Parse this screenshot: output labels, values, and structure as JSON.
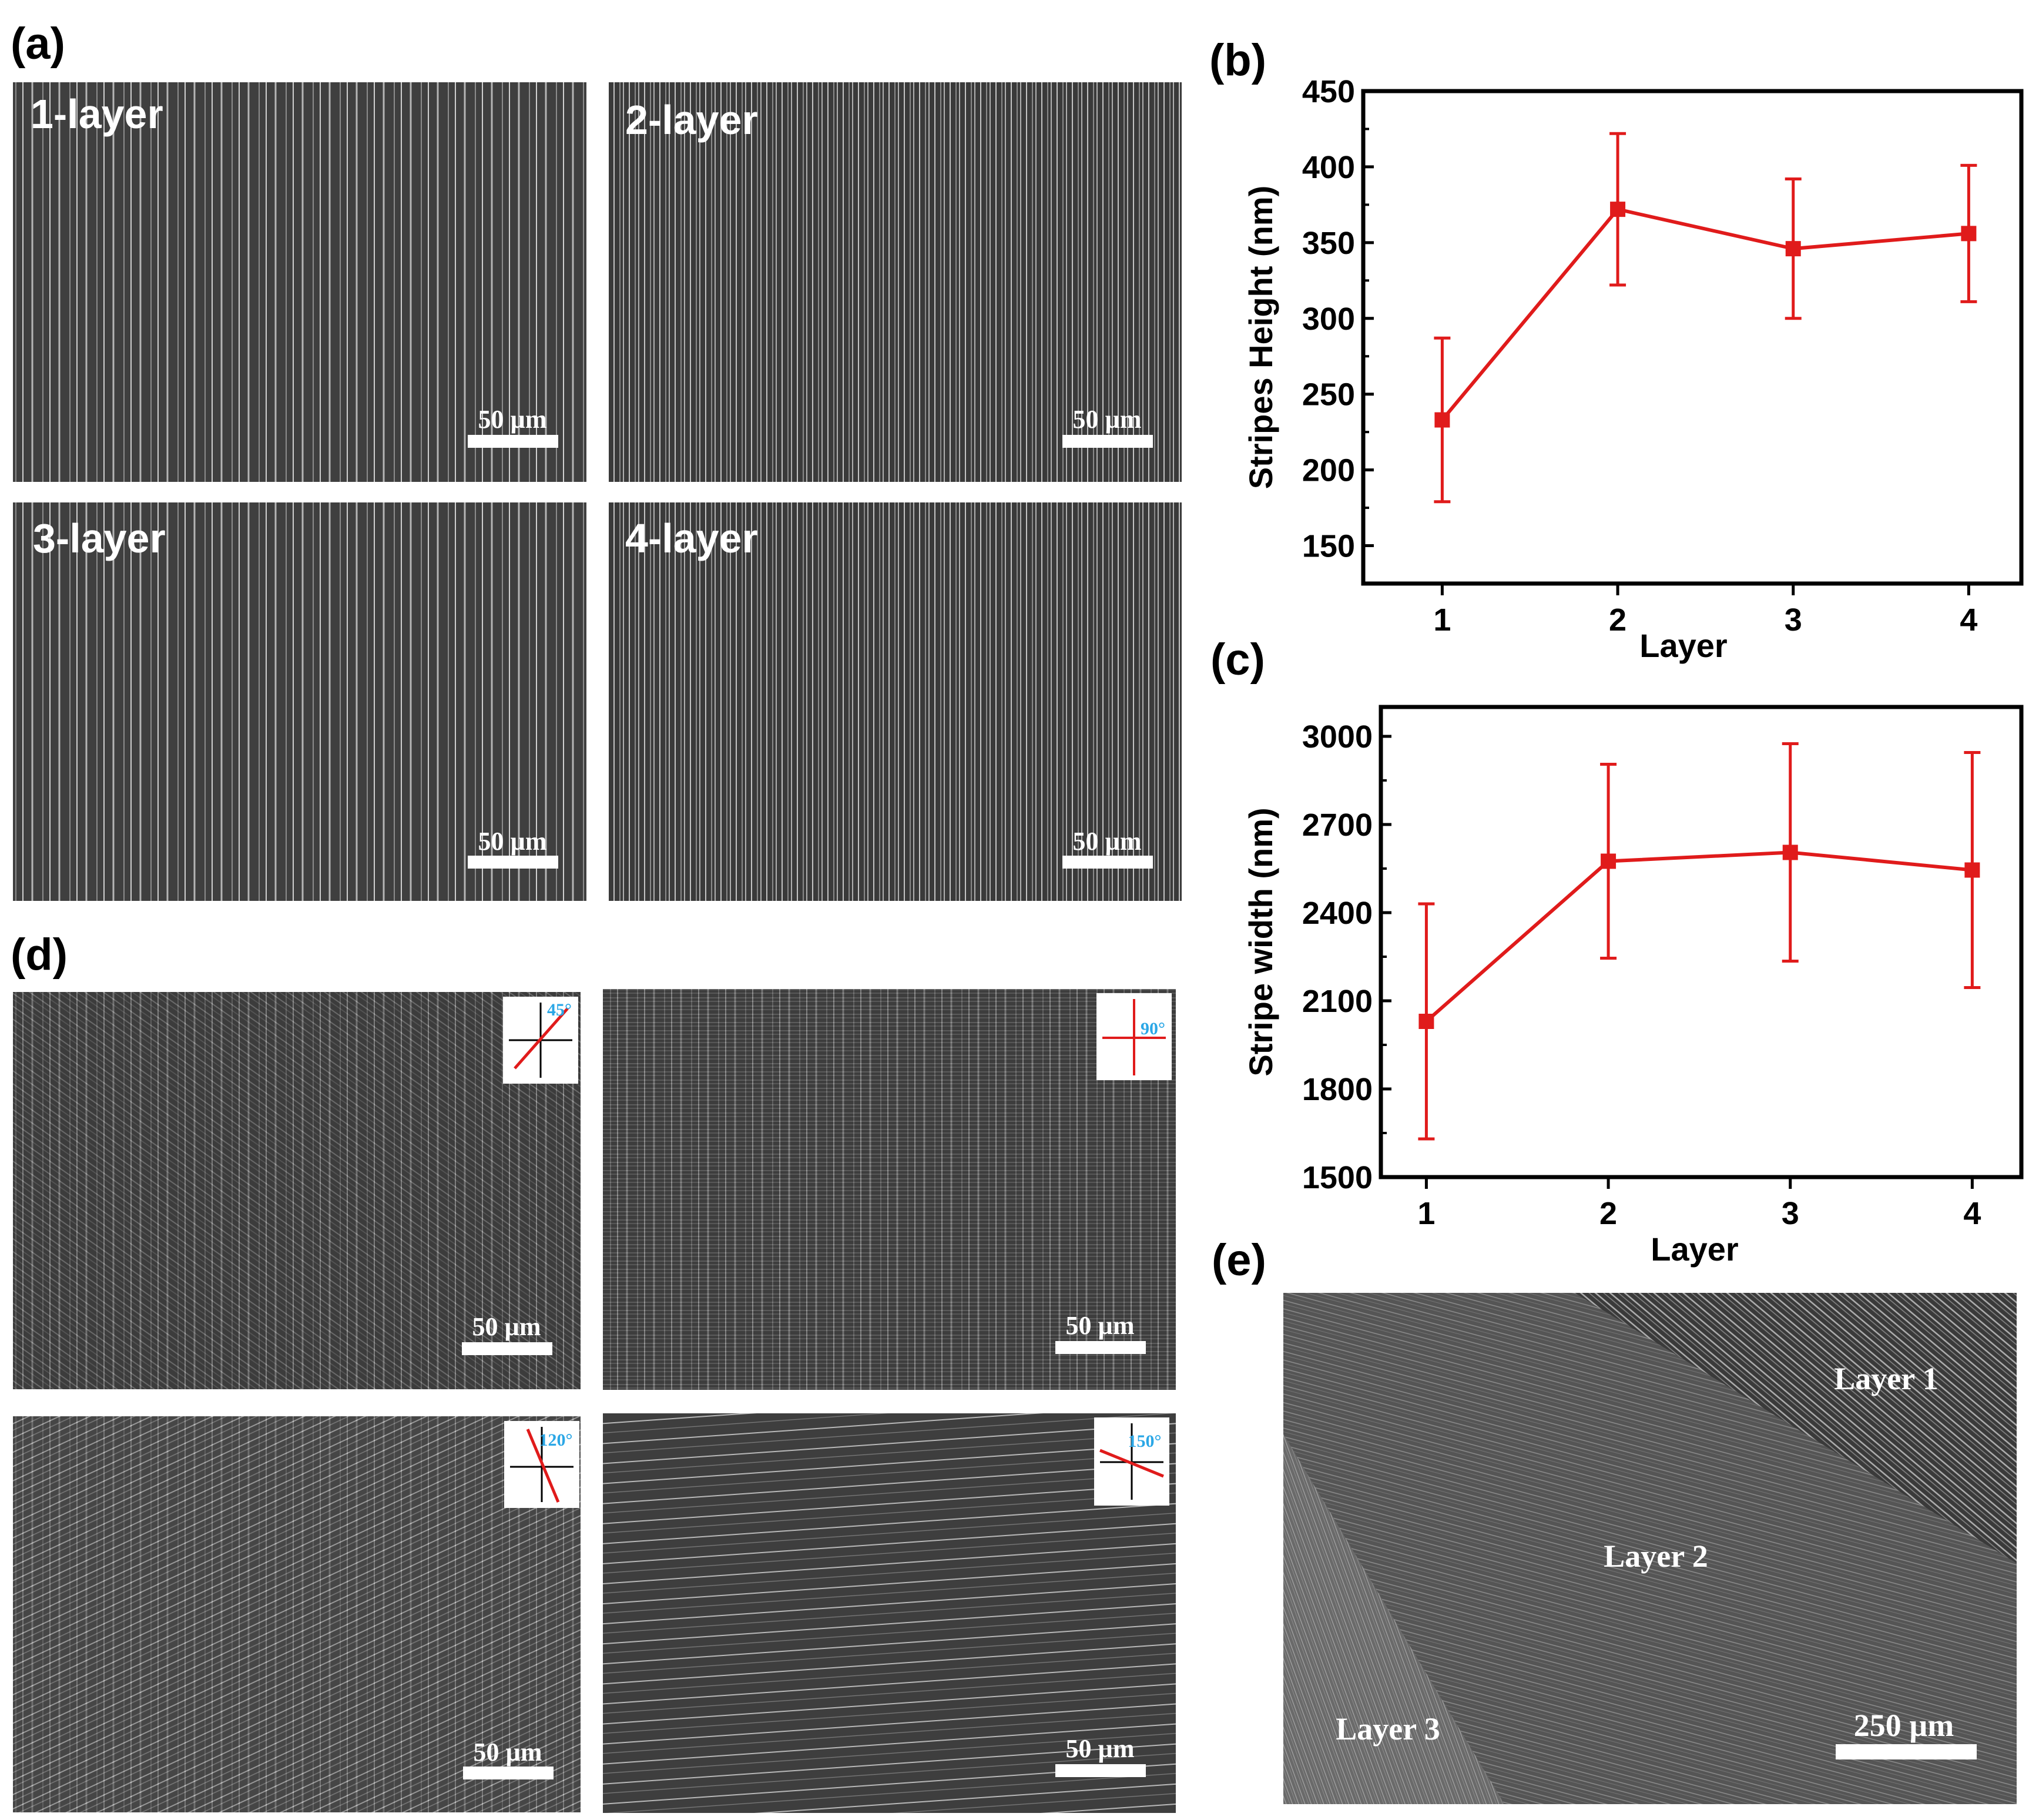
{
  "panels": {
    "a": {
      "label": "(a)",
      "images": [
        {
          "label": "1-layer",
          "scale_bar": "50 µm"
        },
        {
          "label": "2-layer",
          "scale_bar": "50 µm"
        },
        {
          "label": "3-layer",
          "scale_bar": "50 µm"
        },
        {
          "label": "4-layer",
          "scale_bar": "50 µm"
        }
      ]
    },
    "b": {
      "label": "(b)"
    },
    "c": {
      "label": "(c)"
    },
    "d": {
      "label": "(d)",
      "images": [
        {
          "angle": "45°",
          "scale_bar": "50 µm"
        },
        {
          "angle": "90°",
          "scale_bar": "50 µm"
        },
        {
          "angle": "120°",
          "scale_bar": "50 µm"
        },
        {
          "angle": "150°",
          "scale_bar": "50 µm"
        }
      ]
    },
    "e": {
      "label": "(e)",
      "layers": [
        "Layer 1",
        "Layer 2",
        "Layer 3"
      ],
      "scale_bar": "250 µm"
    }
  },
  "colors": {
    "series": "#e01b1b",
    "sem_bg": "#454545",
    "inset_line": "#e01b1b",
    "angle_text": "#2ba7e6"
  },
  "chart_data": [
    {
      "type": "line",
      "panel": "b",
      "title": "",
      "xlabel": "Layer",
      "ylabel": "Stripes Height (nm)",
      "x": [
        1,
        2,
        3,
        4
      ],
      "y": [
        233,
        372,
        346,
        356
      ],
      "error": [
        54,
        50,
        46,
        45
      ],
      "xticks": [
        "1",
        "2",
        "3",
        "4"
      ],
      "yticks": [
        "150",
        "200",
        "250",
        "300",
        "350",
        "400",
        "450"
      ],
      "xlim": [
        0.55,
        4.3
      ],
      "ylim": [
        125,
        450
      ]
    },
    {
      "type": "line",
      "panel": "c",
      "title": "",
      "xlabel": "Layer",
      "ylabel": "Stripe width (nm)",
      "x": [
        1,
        2,
        3,
        4
      ],
      "y": [
        2030,
        2575,
        2605,
        2545
      ],
      "error": [
        400,
        330,
        370,
        400
      ],
      "xticks": [
        "1",
        "2",
        "3",
        "4"
      ],
      "yticks": [
        "1500",
        "1800",
        "2100",
        "2400",
        "2700",
        "3000"
      ],
      "xlim": [
        0.75,
        4.27
      ],
      "ylim": [
        1500,
        3100
      ]
    }
  ]
}
